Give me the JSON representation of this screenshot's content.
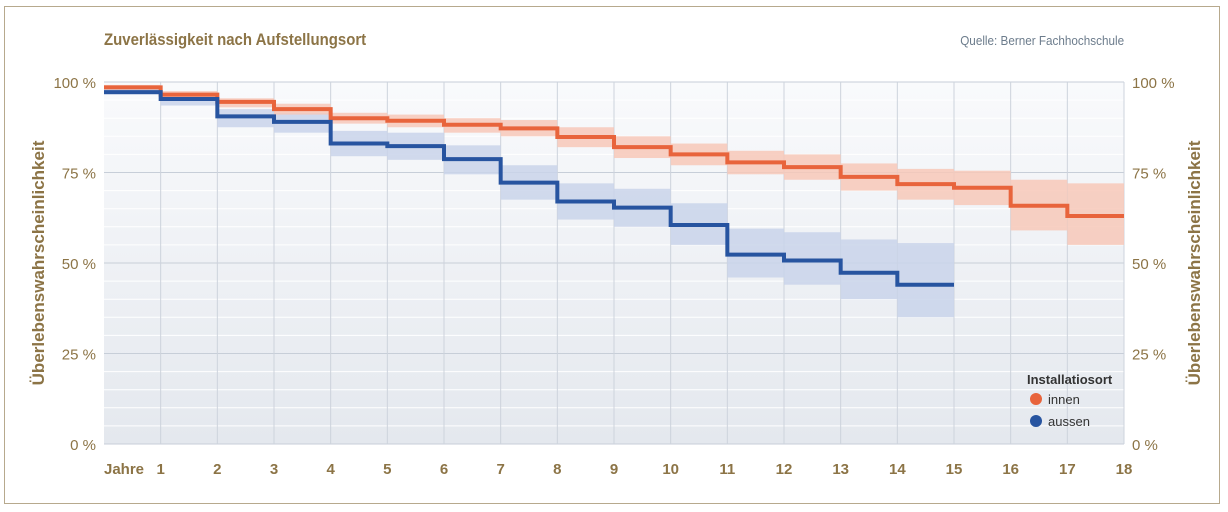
{
  "chart_data": {
    "type": "line",
    "step": true,
    "title": "Zuverlässigkeit nach Aufstellungsort",
    "source": "Quelle:  Berner Fachhochschule",
    "ylabel": "Überlebenswahrscheinlichkeit",
    "xlabel": "Jahre",
    "xlim": [
      0,
      18
    ],
    "ylim": [
      0,
      100
    ],
    "x_ticks": [
      "1",
      "2",
      "3",
      "4",
      "5",
      "6",
      "7",
      "8",
      "9",
      "10",
      "11",
      "12",
      "13",
      "14",
      "15",
      "16",
      "17",
      "18"
    ],
    "y_ticks": [
      {
        "value": 0,
        "label": "0 %"
      },
      {
        "value": 25,
        "label": "25 %"
      },
      {
        "value": 50,
        "label": "50 %"
      },
      {
        "value": 75,
        "label": "75 %"
      },
      {
        "value": 100,
        "label": "100 %"
      }
    ],
    "grid": true,
    "legend": {
      "title": "Installatiosort",
      "position": "bottom-right"
    },
    "series": [
      {
        "name": "innen",
        "color": "#e8643c",
        "band_color": "#f7c8b8",
        "x_end": 18,
        "steps": [
          {
            "x": 0,
            "y": 98.5,
            "lo": 98,
            "hi": 99.2
          },
          {
            "x": 1,
            "y": 96.5,
            "lo": 95.5,
            "hi": 97.5
          },
          {
            "x": 2,
            "y": 94.5,
            "lo": 93,
            "hi": 95.5
          },
          {
            "x": 3,
            "y": 92.5,
            "lo": 91,
            "hi": 94
          },
          {
            "x": 4,
            "y": 90.0,
            "lo": 88.5,
            "hi": 91.5
          },
          {
            "x": 5,
            "y": 89.3,
            "lo": 87.5,
            "hi": 91
          },
          {
            "x": 6,
            "y": 88.2,
            "lo": 86,
            "hi": 90
          },
          {
            "x": 7,
            "y": 87.2,
            "lo": 85,
            "hi": 89.5
          },
          {
            "x": 8,
            "y": 84.8,
            "lo": 82,
            "hi": 87.5
          },
          {
            "x": 9,
            "y": 82.0,
            "lo": 79,
            "hi": 85
          },
          {
            "x": 10,
            "y": 80.0,
            "lo": 77,
            "hi": 83
          },
          {
            "x": 11,
            "y": 77.8,
            "lo": 74.5,
            "hi": 81
          },
          {
            "x": 12,
            "y": 76.5,
            "lo": 73,
            "hi": 80
          },
          {
            "x": 13,
            "y": 73.8,
            "lo": 70,
            "hi": 77.5
          },
          {
            "x": 14,
            "y": 71.8,
            "lo": 67.5,
            "hi": 76
          },
          {
            "x": 15,
            "y": 70.8,
            "lo": 66,
            "hi": 75.5
          },
          {
            "x": 16,
            "y": 65.8,
            "lo": 59,
            "hi": 73
          },
          {
            "x": 17,
            "y": 63.0,
            "lo": 55,
            "hi": 72
          }
        ]
      },
      {
        "name": "aussen",
        "color": "#2754a0",
        "band_color": "#c9d4ea",
        "x_end": 15,
        "steps": [
          {
            "x": 0,
            "y": 97.2,
            "lo": 96.5,
            "hi": 98
          },
          {
            "x": 1,
            "y": 95.3,
            "lo": 93.5,
            "hi": 96.5
          },
          {
            "x": 2,
            "y": 90.5,
            "lo": 87.5,
            "hi": 92.5
          },
          {
            "x": 3,
            "y": 89.0,
            "lo": 86,
            "hi": 91.5
          },
          {
            "x": 4,
            "y": 83.0,
            "lo": 79.5,
            "hi": 86.5
          },
          {
            "x": 5,
            "y": 82.3,
            "lo": 78.5,
            "hi": 86
          },
          {
            "x": 6,
            "y": 78.7,
            "lo": 74.5,
            "hi": 82.5
          },
          {
            "x": 7,
            "y": 72.2,
            "lo": 67.5,
            "hi": 77
          },
          {
            "x": 8,
            "y": 67.0,
            "lo": 62,
            "hi": 72
          },
          {
            "x": 9,
            "y": 65.3,
            "lo": 60,
            "hi": 70.5
          },
          {
            "x": 10,
            "y": 60.5,
            "lo": 55,
            "hi": 66.5
          },
          {
            "x": 11,
            "y": 52.3,
            "lo": 46,
            "hi": 59.5
          },
          {
            "x": 12,
            "y": 50.7,
            "lo": 44,
            "hi": 58.5
          },
          {
            "x": 13,
            "y": 47.3,
            "lo": 40,
            "hi": 56.5
          },
          {
            "x": 14,
            "y": 44.0,
            "lo": 35,
            "hi": 55.5
          }
        ]
      }
    ]
  }
}
